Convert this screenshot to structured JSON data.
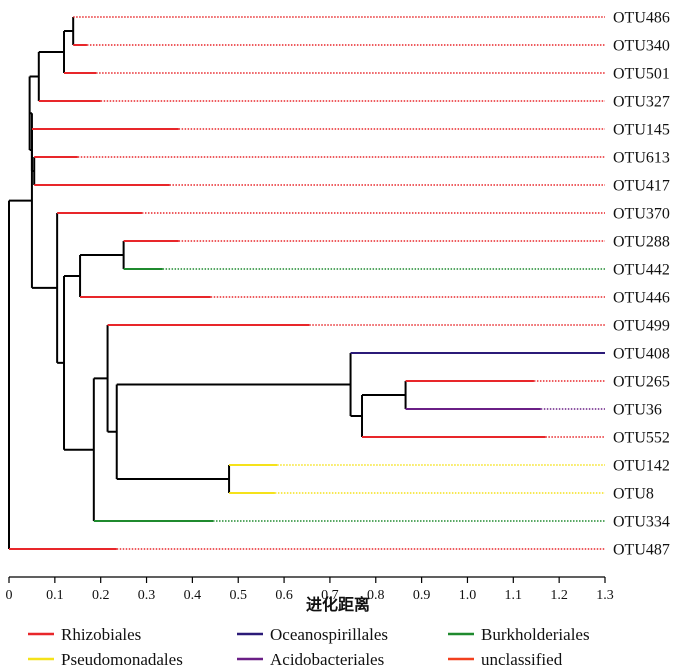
{
  "chart_data": {
    "type": "dendrogram",
    "xlabel": "进化距离",
    "xlim": [
      0,
      1.3
    ],
    "x_ticks": [
      "0",
      "0.1",
      "0.2",
      "0.3",
      "0.4",
      "0.5",
      "0.6",
      "0.7",
      "0.8",
      "0.9",
      "1.0",
      "1.1",
      "1.2",
      "1.3"
    ],
    "leaves": [
      {
        "name": "OTU486",
        "parent_x": 0.14,
        "end_x": 0.14,
        "group": "Rhizobiales"
      },
      {
        "name": "OTU340",
        "parent_x": 0.14,
        "end_x": 0.17,
        "group": "Rhizobiales"
      },
      {
        "name": "OTU501",
        "parent_x": 0.12,
        "end_x": 0.19,
        "group": "Rhizobiales"
      },
      {
        "name": "OTU327",
        "parent_x": 0.065,
        "end_x": 0.2,
        "group": "Rhizobiales"
      },
      {
        "name": "OTU145",
        "parent_x": 0.05,
        "end_x": 0.37,
        "group": "Rhizobiales"
      },
      {
        "name": "OTU613",
        "parent_x": 0.055,
        "end_x": 0.15,
        "group": "Rhizobiales"
      },
      {
        "name": "OTU417",
        "parent_x": 0.055,
        "end_x": 0.35,
        "group": "Rhizobiales"
      },
      {
        "name": "OTU370",
        "parent_x": 0.105,
        "end_x": 0.29,
        "group": "Rhizobiales"
      },
      {
        "name": "OTU288",
        "parent_x": 0.25,
        "end_x": 0.37,
        "group": "Rhizobiales"
      },
      {
        "name": "OTU442",
        "parent_x": 0.25,
        "end_x": 0.335,
        "group": "Burkholderiales"
      },
      {
        "name": "OTU446",
        "parent_x": 0.155,
        "end_x": 0.44,
        "group": "Rhizobiales"
      },
      {
        "name": "OTU499",
        "parent_x": 0.215,
        "end_x": 0.655,
        "group": "Rhizobiales"
      },
      {
        "name": "OTU408",
        "parent_x": 0.745,
        "end_x": 1.3,
        "group": "Oceanospirillales"
      },
      {
        "name": "OTU265",
        "parent_x": 0.865,
        "end_x": 1.145,
        "group": "Rhizobiales"
      },
      {
        "name": "OTU36",
        "parent_x": 0.865,
        "end_x": 1.16,
        "group": "Acidobacteriales"
      },
      {
        "name": "OTU552",
        "parent_x": 0.77,
        "end_x": 1.17,
        "group": "Rhizobiales"
      },
      {
        "name": "OTU142",
        "parent_x": 0.48,
        "end_x": 0.585,
        "group": "Pseudomonadales"
      },
      {
        "name": "OTU8",
        "parent_x": 0.48,
        "end_x": 0.58,
        "group": "Pseudomonadales"
      },
      {
        "name": "OTU334",
        "parent_x": 0.185,
        "end_x": 0.445,
        "group": "Burkholderiales"
      },
      {
        "name": "OTU487",
        "parent_x": 0.0,
        "end_x": 0.235,
        "group": "Rhizobiales"
      }
    ],
    "internal_nodes": [
      {
        "id": "n1",
        "x": 0.14,
        "children": [
          "OTU486",
          "OTU340"
        ]
      },
      {
        "id": "n2",
        "x": 0.12,
        "children": [
          "n1",
          "OTU501"
        ]
      },
      {
        "id": "n3",
        "x": 0.065,
        "children": [
          "n2",
          "OTU327"
        ]
      },
      {
        "id": "n4",
        "x": 0.055,
        "children": [
          "OTU613",
          "OTU417"
        ]
      },
      {
        "id": "n5",
        "x": 0.05,
        "children": [
          "OTU145",
          "n4"
        ]
      },
      {
        "id": "n6",
        "x": 0.045,
        "children": [
          "n3",
          "n5"
        ]
      },
      {
        "id": "n7",
        "x": 0.25,
        "children": [
          "OTU288",
          "OTU442"
        ]
      },
      {
        "id": "n8",
        "x": 0.155,
        "children": [
          "n7",
          "OTU446"
        ]
      },
      {
        "id": "n9",
        "x": 0.865,
        "children": [
          "OTU265",
          "OTU36"
        ]
      },
      {
        "id": "n10",
        "x": 0.77,
        "children": [
          "n9",
          "OTU552"
        ]
      },
      {
        "id": "n11",
        "x": 0.745,
        "children": [
          "OTU408",
          "n10"
        ]
      },
      {
        "id": "n12",
        "x": 0.48,
        "children": [
          "OTU142",
          "OTU8"
        ]
      },
      {
        "id": "n13",
        "x": 0.235,
        "children": [
          "n11",
          "n12"
        ]
      },
      {
        "id": "n14",
        "x": 0.215,
        "children": [
          "OTU499",
          "n13"
        ]
      },
      {
        "id": "n15",
        "x": 0.185,
        "children": [
          "n14",
          "OTU334"
        ]
      },
      {
        "id": "n16",
        "x": 0.12,
        "children": [
          "n8",
          "n15"
        ]
      },
      {
        "id": "n17",
        "x": 0.105,
        "children": [
          "OTU370",
          "n16"
        ]
      },
      {
        "id": "n18",
        "x": 0.05,
        "children": [
          "n6",
          "n17"
        ]
      },
      {
        "id": "n19",
        "x": 0.0,
        "children": [
          "n18",
          "OTU487"
        ]
      }
    ],
    "legend": [
      {
        "label": "Rhizobiales",
        "color": "#e8262a"
      },
      {
        "label": "Oceanospirillales",
        "color": "#2b1a78"
      },
      {
        "label": "Burkholderiales",
        "color": "#1f8a2e"
      },
      {
        "label": "Pseudomonadales",
        "color": "#f5e21a"
      },
      {
        "label": "Acidobacteriales",
        "color": "#6a1f86"
      },
      {
        "label": "unclassified",
        "color": "#f2401e"
      }
    ],
    "colors": {
      "Rhizobiales": "#e8262a",
      "Oceanospirillales": "#2b1a78",
      "Burkholderiales": "#1f8a2e",
      "Pseudomonadales": "#f5e21a",
      "Acidobacteriales": "#6a1f86",
      "unclassified": "#f2401e",
      "internal": "#000000",
      "axis": "#000000"
    }
  }
}
